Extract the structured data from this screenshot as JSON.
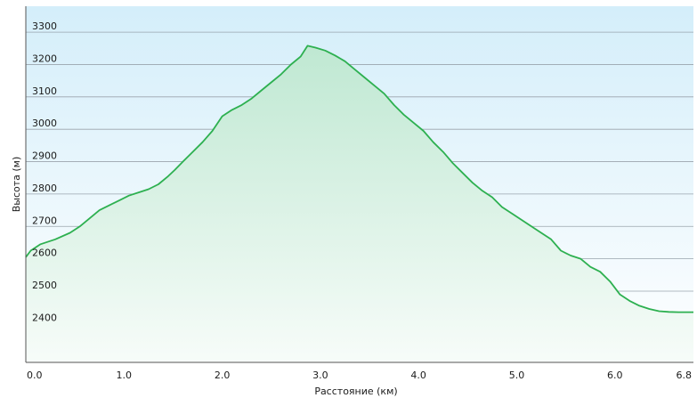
{
  "chart_data": {
    "type": "area",
    "title": "",
    "xlabel": "Расстояние  (км)",
    "ylabel": "Высота (м)",
    "xlim": [
      0,
      6.8
    ],
    "ylim": [
      2280,
      3380
    ],
    "grid": true,
    "legend": "none",
    "x_ticks": [
      "0.0",
      "1.0",
      "2.0",
      "3.0",
      "4.0",
      "5.0",
      "6.0",
      "6.8"
    ],
    "x_tick_values": [
      0,
      1,
      2,
      3,
      4,
      5,
      6,
      6.8
    ],
    "y_ticks": [
      "2400",
      "2500",
      "2600",
      "2700",
      "2800",
      "2900",
      "3000",
      "3100",
      "3200",
      "3300"
    ],
    "y_tick_values": [
      2400,
      2500,
      2600,
      2700,
      2800,
      2900,
      3000,
      3100,
      3200,
      3300
    ],
    "colors": {
      "line": "#2db050",
      "fill_top": "#bfe8d2",
      "fill_bottom": "#ffffff",
      "bg_top": "#d4eefa",
      "bg_bottom": "#ffffff",
      "grid": "#9aa4ad"
    },
    "series": [
      {
        "x": [
          0,
          0.05,
          0.15,
          0.3,
          0.45,
          0.55,
          0.65,
          0.75,
          0.85,
          0.95,
          1.05,
          1.15,
          1.25,
          1.35,
          1.45,
          1.52,
          1.6,
          1.7,
          1.8,
          1.9,
          2.0,
          2.1,
          2.2,
          2.3,
          2.4,
          2.5,
          2.6,
          2.7,
          2.8,
          2.87,
          2.95,
          3.05,
          3.15,
          3.25,
          3.35,
          3.45,
          3.55,
          3.65,
          3.75,
          3.85,
          3.95,
          4.05,
          4.15,
          4.25,
          4.35,
          4.45,
          4.55,
          4.65,
          4.75,
          4.85,
          4.95,
          5.05,
          5.15,
          5.25,
          5.35,
          5.45,
          5.55,
          5.65,
          5.75,
          5.85,
          5.95,
          6.05,
          6.15,
          6.25,
          6.35,
          6.45,
          6.55,
          6.65,
          6.8
        ],
        "y": [
          2605,
          2625,
          2645,
          2660,
          2680,
          2700,
          2725,
          2750,
          2765,
          2780,
          2795,
          2805,
          2815,
          2830,
          2855,
          2875,
          2900,
          2930,
          2960,
          2995,
          3040,
          3060,
          3075,
          3095,
          3120,
          3145,
          3170,
          3200,
          3225,
          3258,
          3252,
          3243,
          3228,
          3210,
          3185,
          3160,
          3135,
          3110,
          3075,
          3045,
          3020,
          2995,
          2960,
          2930,
          2895,
          2865,
          2835,
          2810,
          2790,
          2760,
          2740,
          2720,
          2700,
          2680,
          2660,
          2625,
          2610,
          2600,
          2575,
          2560,
          2530,
          2490,
          2470,
          2455,
          2445,
          2438,
          2436,
          2435,
          2435
        ]
      }
    ]
  }
}
